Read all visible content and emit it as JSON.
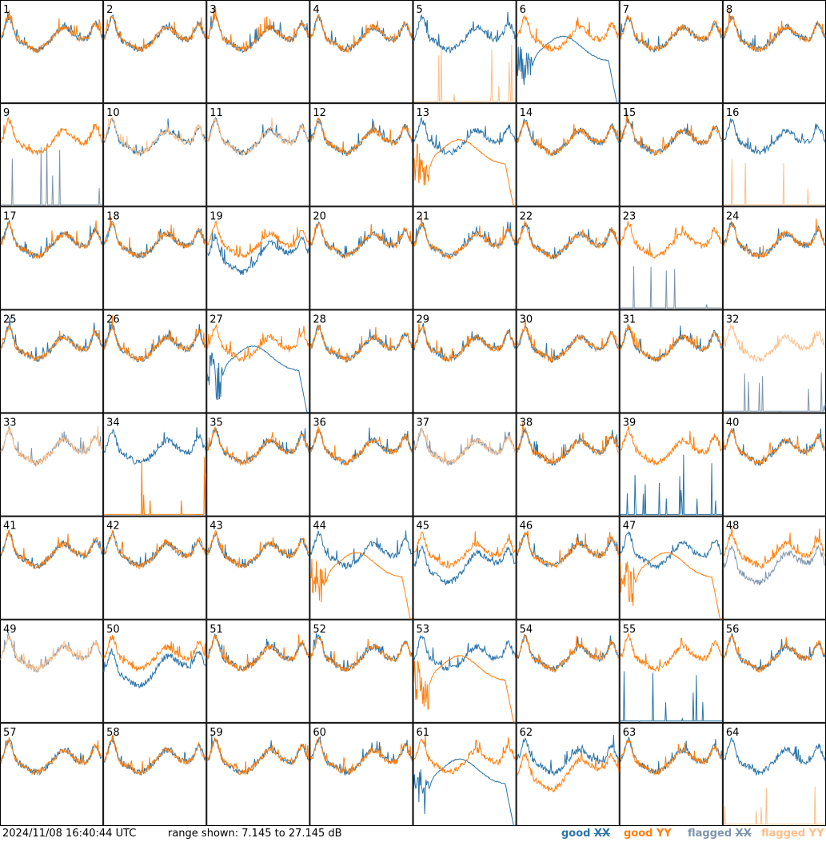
{
  "footer": {
    "timestamp": "2024/11/08 16:40:44 UTC",
    "range_text": "range shown: 7.145 to 27.145 dB",
    "legend": [
      {
        "label_prefix": "good ",
        "label_pol": "XX",
        "color": "#2a74aa"
      },
      {
        "label_prefix": "good ",
        "label_pol": "YY",
        "color": "#ff7f0e"
      },
      {
        "label_prefix": "flagged ",
        "label_pol": "XX",
        "color": "#7f95ad"
      },
      {
        "label_prefix": "flagged ",
        "label_pol": "YY",
        "color": "#ffbf88"
      }
    ]
  },
  "chart_data": {
    "type": "line",
    "layout": "8x8 small multiples",
    "y_range_db": [
      7.145,
      27.145
    ],
    "tiles": [
      {
        "label": "1",
        "xx": "good",
        "yy": "good",
        "pattern": "normal"
      },
      {
        "label": "2",
        "xx": "good",
        "yy": "good",
        "pattern": "normal"
      },
      {
        "label": "3",
        "xx": "good",
        "yy": "good",
        "pattern": "normal"
      },
      {
        "label": "4",
        "xx": "good",
        "yy": "good",
        "pattern": "normal"
      },
      {
        "label": "5",
        "xx": "good",
        "yy": "flagged",
        "pattern": "yy_dead"
      },
      {
        "label": "6",
        "xx": "good",
        "yy": "good",
        "pattern": "xx_bump"
      },
      {
        "label": "7",
        "xx": "good",
        "yy": "good",
        "pattern": "normal"
      },
      {
        "label": "8",
        "xx": "good",
        "yy": "good",
        "pattern": "normal"
      },
      {
        "label": "9",
        "xx": "flagged",
        "yy": "good",
        "pattern": "xx_dead"
      },
      {
        "label": "10",
        "xx": "good",
        "yy": "flagged",
        "pattern": "normal"
      },
      {
        "label": "11",
        "xx": "good",
        "yy": "flagged",
        "pattern": "normal"
      },
      {
        "label": "12",
        "xx": "good",
        "yy": "good",
        "pattern": "normal"
      },
      {
        "label": "13",
        "xx": "good",
        "yy": "good",
        "pattern": "yy_bump"
      },
      {
        "label": "14",
        "xx": "good",
        "yy": "good",
        "pattern": "normal"
      },
      {
        "label": "15",
        "xx": "good",
        "yy": "good",
        "pattern": "normal"
      },
      {
        "label": "16",
        "xx": "good",
        "yy": "flagged",
        "pattern": "yy_dead"
      },
      {
        "label": "17",
        "xx": "good",
        "yy": "good",
        "pattern": "normal"
      },
      {
        "label": "18",
        "xx": "good",
        "yy": "good",
        "pattern": "normal"
      },
      {
        "label": "19",
        "xx": "good",
        "yy": "good",
        "pattern": "xx_low"
      },
      {
        "label": "20",
        "xx": "good",
        "yy": "good",
        "pattern": "normal"
      },
      {
        "label": "21",
        "xx": "good",
        "yy": "good",
        "pattern": "normal"
      },
      {
        "label": "22",
        "xx": "good",
        "yy": "good",
        "pattern": "normal"
      },
      {
        "label": "23",
        "xx": "flagged",
        "yy": "good",
        "pattern": "xx_dead"
      },
      {
        "label": "24",
        "xx": "good",
        "yy": "good",
        "pattern": "normal"
      },
      {
        "label": "25",
        "xx": "good",
        "yy": "good",
        "pattern": "normal"
      },
      {
        "label": "26",
        "xx": "good",
        "yy": "good",
        "pattern": "normal"
      },
      {
        "label": "27",
        "xx": "good",
        "yy": "good",
        "pattern": "xx_bump"
      },
      {
        "label": "28",
        "xx": "good",
        "yy": "good",
        "pattern": "normal"
      },
      {
        "label": "29",
        "xx": "good",
        "yy": "good",
        "pattern": "normal"
      },
      {
        "label": "30",
        "xx": "good",
        "yy": "good",
        "pattern": "normal"
      },
      {
        "label": "31",
        "xx": "good",
        "yy": "good",
        "pattern": "normal"
      },
      {
        "label": "32",
        "xx": "flagged",
        "yy": "flagged",
        "pattern": "xx_dead"
      },
      {
        "label": "33",
        "xx": "flagged",
        "yy": "flagged",
        "pattern": "normal"
      },
      {
        "label": "34",
        "xx": "good",
        "yy": "good",
        "pattern": "yy_dead"
      },
      {
        "label": "35",
        "xx": "good",
        "yy": "good",
        "pattern": "normal"
      },
      {
        "label": "36",
        "xx": "good",
        "yy": "good",
        "pattern": "normal"
      },
      {
        "label": "37",
        "xx": "flagged",
        "yy": "flagged",
        "pattern": "normal"
      },
      {
        "label": "38",
        "xx": "good",
        "yy": "good",
        "pattern": "normal"
      },
      {
        "label": "39",
        "xx": "good",
        "yy": "good",
        "pattern": "xx_dead"
      },
      {
        "label": "40",
        "xx": "good",
        "yy": "good",
        "pattern": "normal"
      },
      {
        "label": "41",
        "xx": "good",
        "yy": "good",
        "pattern": "normal"
      },
      {
        "label": "42",
        "xx": "good",
        "yy": "good",
        "pattern": "normal"
      },
      {
        "label": "43",
        "xx": "good",
        "yy": "good",
        "pattern": "normal"
      },
      {
        "label": "44",
        "xx": "good",
        "yy": "good",
        "pattern": "yy_bump"
      },
      {
        "label": "45",
        "xx": "good",
        "yy": "good",
        "pattern": "xx_low"
      },
      {
        "label": "46",
        "xx": "good",
        "yy": "good",
        "pattern": "normal"
      },
      {
        "label": "47",
        "xx": "good",
        "yy": "good",
        "pattern": "yy_bump"
      },
      {
        "label": "48",
        "xx": "flagged",
        "yy": "good",
        "pattern": "xx_low"
      },
      {
        "label": "49",
        "xx": "flagged",
        "yy": "flagged",
        "pattern": "normal"
      },
      {
        "label": "50",
        "xx": "good",
        "yy": "good",
        "pattern": "xx_low"
      },
      {
        "label": "51",
        "xx": "good",
        "yy": "good",
        "pattern": "normal"
      },
      {
        "label": "52",
        "xx": "good",
        "yy": "good",
        "pattern": "normal"
      },
      {
        "label": "53",
        "xx": "good",
        "yy": "good",
        "pattern": "yy_bump"
      },
      {
        "label": "54",
        "xx": "good",
        "yy": "good",
        "pattern": "normal"
      },
      {
        "label": "55",
        "xx": "good",
        "yy": "good",
        "pattern": "xx_dead"
      },
      {
        "label": "56",
        "xx": "good",
        "yy": "good",
        "pattern": "normal"
      },
      {
        "label": "57",
        "xx": "good",
        "yy": "good",
        "pattern": "normal"
      },
      {
        "label": "58",
        "xx": "good",
        "yy": "good",
        "pattern": "normal"
      },
      {
        "label": "59",
        "xx": "good",
        "yy": "good",
        "pattern": "normal"
      },
      {
        "label": "60",
        "xx": "good",
        "yy": "good",
        "pattern": "normal"
      },
      {
        "label": "61",
        "xx": "good",
        "yy": "good",
        "pattern": "xx_bump"
      },
      {
        "label": "62",
        "xx": "good",
        "yy": "good",
        "pattern": "yy_low"
      },
      {
        "label": "63",
        "xx": "good",
        "yy": "good",
        "pattern": "normal"
      },
      {
        "label": "64",
        "xx": "good",
        "yy": "flagged",
        "pattern": "yy_dead"
      }
    ]
  }
}
